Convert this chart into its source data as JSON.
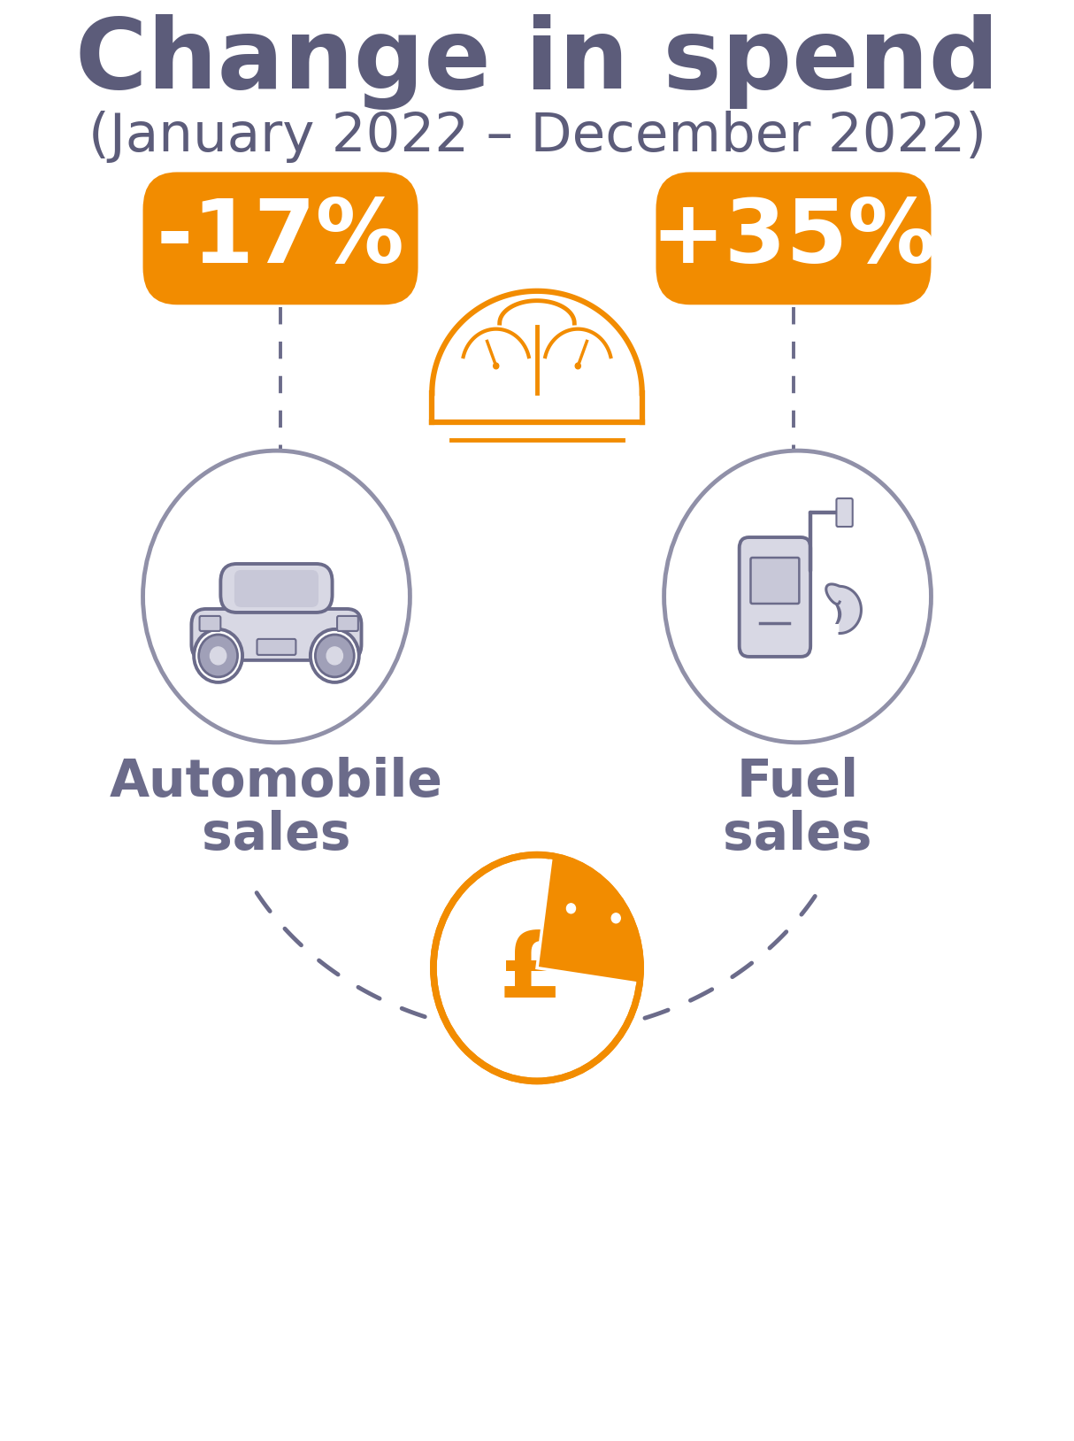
{
  "title": "Change in spend",
  "subtitle": "(January 2022 – December 2022)",
  "title_color": "#5c5c7a",
  "orange_color": "#F28C00",
  "gray_color": "#6b6b8a",
  "gray_circle_edge": "#9090a8",
  "gray_light": "#c8c8d8",
  "gray_fill": "#d8d8e4",
  "gray_mid": "#a0a0b8",
  "left_value": "-17%",
  "right_value": "+35%",
  "left_label_line1": "Automobile",
  "left_label_line2": "sales",
  "right_label_line1": "Fuel",
  "right_label_line2": "sales",
  "background_color": "#ffffff",
  "title_fontsize": 80,
  "subtitle_fontsize": 44,
  "badge_fontsize": 72,
  "label_fontsize": 42
}
